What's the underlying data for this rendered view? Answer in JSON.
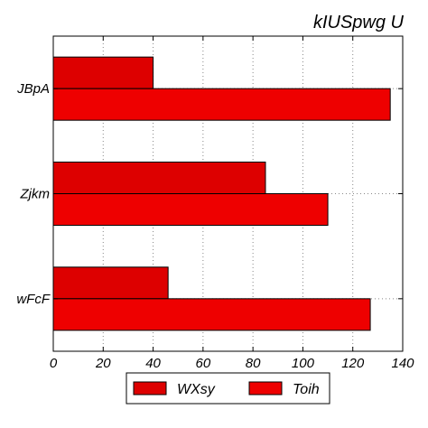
{
  "chart_data": {
    "type": "bar",
    "orientation": "horizontal",
    "title": "kIUSpwg U",
    "categories": [
      "JBpA",
      "Zjkm",
      "wFcF"
    ],
    "series": [
      {
        "name": "WXsy",
        "values": [
          40,
          85,
          46
        ],
        "color": "#dd0000"
      },
      {
        "name": "Toih",
        "values": [
          135,
          110,
          127
        ],
        "color": "#ee0000"
      }
    ],
    "xlim": [
      0,
      140
    ],
    "xticks": [
      0,
      20,
      40,
      60,
      80,
      100,
      120,
      140
    ],
    "grid": true,
    "legend_position": "bottom-center"
  }
}
